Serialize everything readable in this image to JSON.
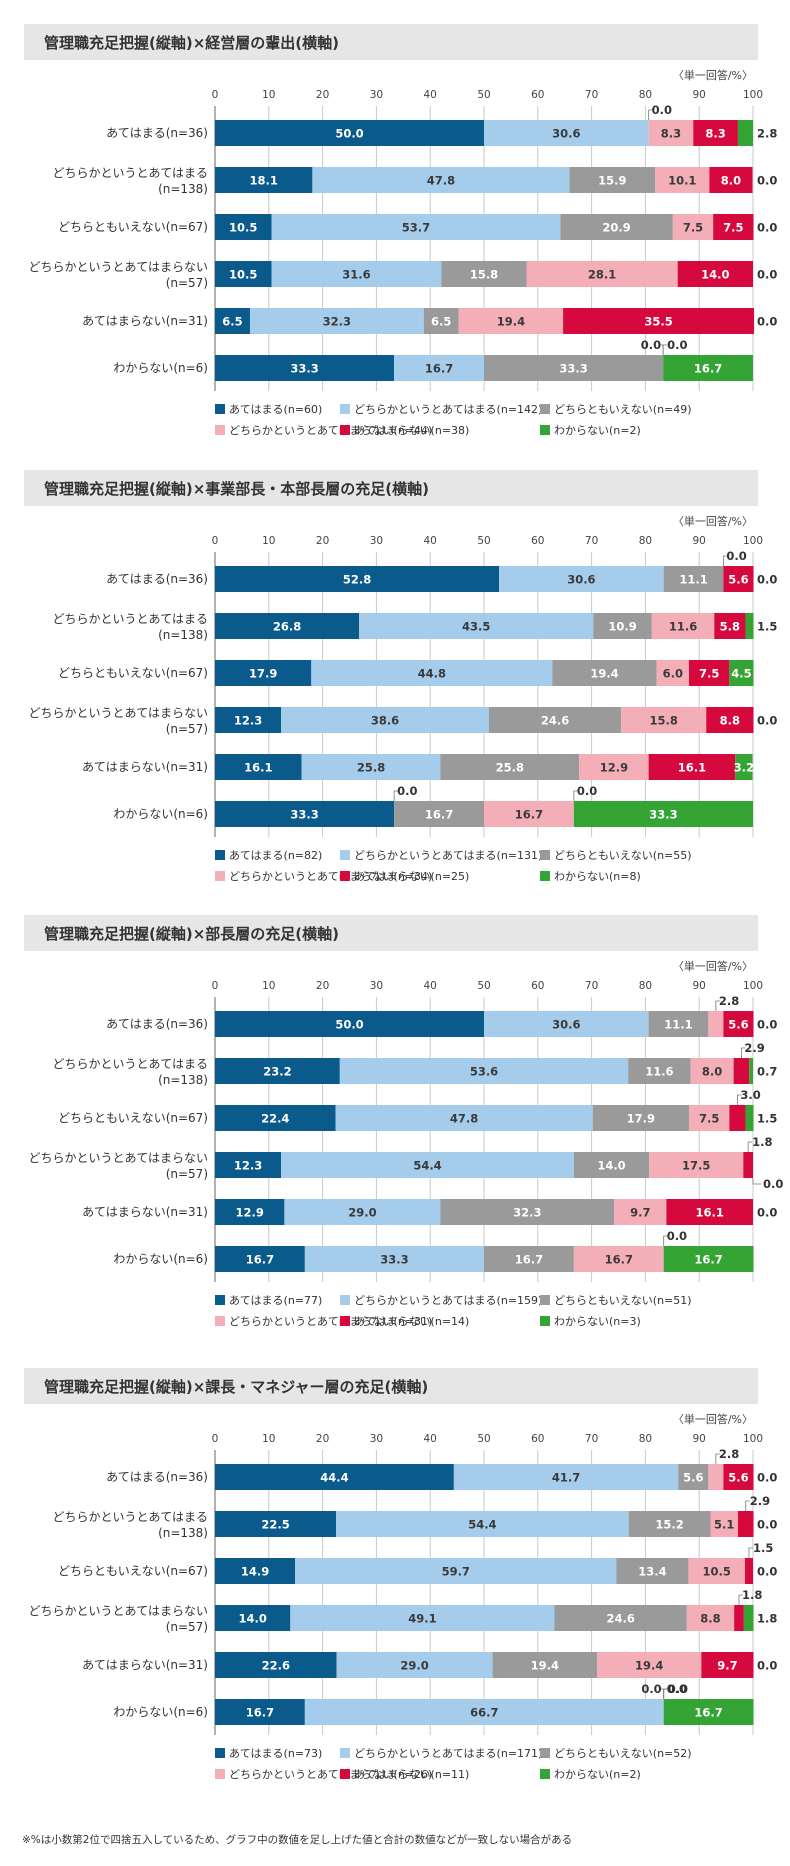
{
  "colors": {
    "s1": "#0a5a8c",
    "s2": "#a5cceb",
    "s3": "#9a9a9a",
    "s4": "#f4aeb8",
    "s5": "#d6093f",
    "s6": "#34a535",
    "header_bg": "#e6e6e6",
    "grid": "#c8c8c8"
  },
  "footnote": "※%は小数第2位で四捨五入しているため、グラフ中の数値を足し上げた値と合計の数値などが一致しない場合がある",
  "chart_data": [
    {
      "type": "bar",
      "stacked": true,
      "orientation": "horizontal",
      "title": "管理職充足把握(縦軸)×経営層の輩出(横軸)",
      "unit_note": "〈単一回答/%〉",
      "xlim": [
        0,
        100
      ],
      "ticks": [
        "0",
        "10",
        "20",
        "30",
        "40",
        "50",
        "60",
        "70",
        "80",
        "90",
        "100"
      ],
      "categories": [
        [
          "あてはまる(n=36)"
        ],
        [
          "どちらかというとあてはまる",
          "(n=138)"
        ],
        [
          "どちらともいえない(n=67)"
        ],
        [
          "どちらかというとあてはまらない",
          "(n=57)"
        ],
        [
          "あてはまらない(n=31)"
        ],
        [
          "わからない(n=6)"
        ]
      ],
      "series_names": [
        "あてはまる",
        "どちらかというとあてはまる",
        "どちらともいえない",
        "どちらかというとあてはまらない",
        "あてはまらない",
        "わからない"
      ],
      "rows": [
        {
          "values": [
            "50.0",
            "30.6",
            "0.0",
            "8.3",
            "8.3",
            "2.8"
          ],
          "inside": [
            true,
            true,
            false,
            true,
            true,
            false
          ],
          "callouts": [
            {
              "s": 2,
              "label": "0.0",
              "pos": "above"
            },
            {
              "s": 5,
              "label": "2.8",
              "pos": "right"
            }
          ]
        },
        {
          "values": [
            "18.1",
            "47.8",
            "15.9",
            "10.1",
            "8.0",
            "0.0"
          ],
          "inside": [
            true,
            true,
            true,
            true,
            true,
            false
          ],
          "callouts": [
            {
              "s": 5,
              "label": "0.0",
              "pos": "right"
            }
          ]
        },
        {
          "values": [
            "10.5",
            "53.7",
            "20.9",
            "7.5",
            "7.5",
            "0.0"
          ],
          "inside": [
            true,
            true,
            true,
            true,
            true,
            false
          ],
          "callouts": [
            {
              "s": 5,
              "label": "0.0",
              "pos": "right"
            }
          ]
        },
        {
          "values": [
            "10.5",
            "31.6",
            "15.8",
            "28.1",
            "14.0",
            "0.0"
          ],
          "inside": [
            true,
            true,
            true,
            true,
            true,
            false
          ],
          "callouts": [
            {
              "s": 5,
              "label": "0.0",
              "pos": "right"
            }
          ]
        },
        {
          "values": [
            "6.5",
            "32.3",
            "6.5",
            "19.4",
            "35.5",
            "0.0"
          ],
          "inside": [
            true,
            true,
            true,
            true,
            true,
            false
          ],
          "callouts": [
            {
              "s": 5,
              "label": "0.0",
              "pos": "right"
            }
          ]
        },
        {
          "values": [
            "33.3",
            "16.7",
            "33.3",
            "0.0",
            "0.0",
            "16.7"
          ],
          "inside": [
            true,
            true,
            true,
            false,
            false,
            true
          ],
          "callouts": [
            {
              "s": 3,
              "label": "0.0",
              "pos": "above-left"
            },
            {
              "s": 4,
              "label": "0.0",
              "pos": "above-right"
            }
          ]
        }
      ],
      "legend": [
        [
          "あてはまる(n=60)",
          "どちらかというとあてはまる(n=142)",
          "どちらともいえない(n=49)"
        ],
        [
          "どちらかというとあてはまらない(n=44)",
          "あてはまらない(n=38)",
          "わからない(n=2)"
        ]
      ]
    },
    {
      "type": "bar",
      "stacked": true,
      "orientation": "horizontal",
      "title": "管理職充足把握(縦軸)×事業部長・本部長層の充足(横軸)",
      "unit_note": "〈単一回答/%〉",
      "xlim": [
        0,
        100
      ],
      "ticks": [
        "0",
        "10",
        "20",
        "30",
        "40",
        "50",
        "60",
        "70",
        "80",
        "90",
        "100"
      ],
      "categories": [
        [
          "あてはまる(n=36)"
        ],
        [
          "どちらかというとあてはまる",
          "(n=138)"
        ],
        [
          "どちらともいえない(n=67)"
        ],
        [
          "どちらかというとあてはまらない",
          "(n=57)"
        ],
        [
          "あてはまらない(n=31)"
        ],
        [
          "わからない(n=6)"
        ]
      ],
      "series_names": [
        "あてはまる",
        "どちらかというとあてはまる",
        "どちらともいえない",
        "どちらかというとあてはまらない",
        "あてはまらない",
        "わからない"
      ],
      "rows": [
        {
          "values": [
            "52.8",
            "30.6",
            "11.1",
            "0.0",
            "5.6",
            "0.0"
          ],
          "inside": [
            true,
            true,
            true,
            false,
            true,
            false
          ],
          "callouts": [
            {
              "s": 3,
              "label": "0.0",
              "pos": "above"
            },
            {
              "s": 5,
              "label": "0.0",
              "pos": "right"
            }
          ]
        },
        {
          "values": [
            "26.8",
            "43.5",
            "10.9",
            "11.6",
            "5.8",
            "1.5"
          ],
          "inside": [
            true,
            true,
            true,
            true,
            true,
            false
          ],
          "callouts": [
            {
              "s": 5,
              "label": "1.5",
              "pos": "right"
            }
          ]
        },
        {
          "values": [
            "17.9",
            "44.8",
            "19.4",
            "6.0",
            "7.5",
            "4.5"
          ],
          "inside": [
            true,
            true,
            true,
            true,
            true,
            true
          ],
          "callouts": []
        },
        {
          "values": [
            "12.3",
            "38.6",
            "24.6",
            "15.8",
            "8.8",
            "0.0"
          ],
          "inside": [
            true,
            true,
            true,
            true,
            true,
            false
          ],
          "callouts": [
            {
              "s": 5,
              "label": "0.0",
              "pos": "right"
            }
          ]
        },
        {
          "values": [
            "16.1",
            "25.8",
            "25.8",
            "12.9",
            "16.1",
            "3.2"
          ],
          "inside": [
            true,
            true,
            true,
            true,
            true,
            true
          ],
          "callouts": []
        },
        {
          "values": [
            "33.3",
            "0.0",
            "16.7",
            "16.7",
            "0.0",
            "33.3"
          ],
          "inside": [
            true,
            false,
            true,
            true,
            false,
            true
          ],
          "callouts": [
            {
              "s": 1,
              "label": "0.0",
              "pos": "above"
            },
            {
              "s": 4,
              "label": "0.0",
              "pos": "above"
            }
          ]
        }
      ],
      "legend": [
        [
          "あてはまる(n=82)",
          "どちらかというとあてはまる(n=131)",
          "どちらともいえない(n=55)"
        ],
        [
          "どちらかというとあてはまらない(n=34)",
          "あてはまらない(n=25)",
          "わからない(n=8)"
        ]
      ]
    },
    {
      "type": "bar",
      "stacked": true,
      "orientation": "horizontal",
      "title": "管理職充足把握(縦軸)×部長層の充足(横軸)",
      "unit_note": "〈単一回答/%〉",
      "xlim": [
        0,
        100
      ],
      "ticks": [
        "0",
        "10",
        "20",
        "30",
        "40",
        "50",
        "60",
        "70",
        "80",
        "90",
        "100"
      ],
      "categories": [
        [
          "あてはまる(n=36)"
        ],
        [
          "どちらかというとあてはまる",
          "(n=138)"
        ],
        [
          "どちらともいえない(n=67)"
        ],
        [
          "どちらかというとあてはまらない",
          "(n=57)"
        ],
        [
          "あてはまらない(n=31)"
        ],
        [
          "わからない(n=6)"
        ]
      ],
      "series_names": [
        "あてはまる",
        "どちらかというとあてはまる",
        "どちらともいえない",
        "どちらかというとあてはまらない",
        "あてはまらない",
        "わからない"
      ],
      "rows": [
        {
          "values": [
            "50.0",
            "30.6",
            "11.1",
            "2.8",
            "5.6",
            "0.0"
          ],
          "inside": [
            true,
            true,
            true,
            false,
            true,
            false
          ],
          "callouts": [
            {
              "s": 3,
              "label": "2.8",
              "pos": "above"
            },
            {
              "s": 5,
              "label": "0.0",
              "pos": "right"
            }
          ]
        },
        {
          "values": [
            "23.2",
            "53.6",
            "11.6",
            "8.0",
            "2.9",
            "0.7"
          ],
          "inside": [
            true,
            true,
            true,
            true,
            false,
            false
          ],
          "callouts": [
            {
              "s": 4,
              "label": "2.9",
              "pos": "above"
            },
            {
              "s": 5,
              "label": "0.7",
              "pos": "right"
            }
          ]
        },
        {
          "values": [
            "22.4",
            "47.8",
            "17.9",
            "7.5",
            "3.0",
            "1.5"
          ],
          "inside": [
            true,
            true,
            true,
            true,
            false,
            false
          ],
          "callouts": [
            {
              "s": 4,
              "label": "3.0",
              "pos": "above"
            },
            {
              "s": 5,
              "label": "1.5",
              "pos": "right"
            }
          ]
        },
        {
          "values": [
            "12.3",
            "54.4",
            "14.0",
            "17.5",
            "1.8",
            "0.0"
          ],
          "inside": [
            true,
            true,
            true,
            true,
            false,
            false
          ],
          "callouts": [
            {
              "s": 4,
              "label": "1.8",
              "pos": "above-right"
            },
            {
              "s": 5,
              "label": "0.0",
              "pos": "below-right"
            }
          ]
        },
        {
          "values": [
            "12.9",
            "29.0",
            "32.3",
            "9.7",
            "16.1",
            "0.0"
          ],
          "inside": [
            true,
            true,
            true,
            true,
            true,
            false
          ],
          "callouts": [
            {
              "s": 5,
              "label": "0.0",
              "pos": "right"
            }
          ]
        },
        {
          "values": [
            "16.7",
            "33.3",
            "16.7",
            "16.7",
            "0.0",
            "16.7"
          ],
          "inside": [
            true,
            true,
            true,
            true,
            false,
            true
          ],
          "callouts": [
            {
              "s": 4,
              "label": "0.0",
              "pos": "above"
            }
          ]
        }
      ],
      "legend": [
        [
          "あてはまる(n=77)",
          "どちらかというとあてはまる(n=159)",
          "どちらともいえない(n=51)"
        ],
        [
          "どちらかというとあてはまらない(n=31)",
          "あてはまらない(n=14)",
          "わからない(n=3)"
        ]
      ]
    },
    {
      "type": "bar",
      "stacked": true,
      "orientation": "horizontal",
      "title": "管理職充足把握(縦軸)×課長・マネジャー層の充足(横軸)",
      "unit_note": "〈単一回答/%〉",
      "xlim": [
        0,
        100
      ],
      "ticks": [
        "0",
        "10",
        "20",
        "30",
        "40",
        "50",
        "60",
        "70",
        "80",
        "90",
        "100"
      ],
      "categories": [
        [
          "あてはまる(n=36)"
        ],
        [
          "どちらかというとあてはまる",
          "(n=138)"
        ],
        [
          "どちらともいえない(n=67)"
        ],
        [
          "どちらかというとあてはまらない",
          "(n=57)"
        ],
        [
          "あてはまらない(n=31)"
        ],
        [
          "わからない(n=6)"
        ]
      ],
      "series_names": [
        "あてはまる",
        "どちらかというとあてはまる",
        "どちらともいえない",
        "どちらかというとあてはまらない",
        "あてはまらない",
        "わからない"
      ],
      "rows": [
        {
          "values": [
            "44.4",
            "41.7",
            "5.6",
            "2.8",
            "5.6",
            "0.0"
          ],
          "inside": [
            true,
            true,
            true,
            false,
            true,
            false
          ],
          "callouts": [
            {
              "s": 3,
              "label": "2.8",
              "pos": "above"
            },
            {
              "s": 5,
              "label": "0.0",
              "pos": "right"
            }
          ]
        },
        {
          "values": [
            "22.5",
            "54.4",
            "15.2",
            "5.1",
            "2.9",
            "0.0"
          ],
          "inside": [
            true,
            true,
            true,
            true,
            false,
            false
          ],
          "callouts": [
            {
              "s": 4,
              "label": "2.9",
              "pos": "above-right"
            },
            {
              "s": 5,
              "label": "0.0",
              "pos": "right"
            }
          ]
        },
        {
          "values": [
            "14.9",
            "59.7",
            "13.4",
            "10.5",
            "1.5",
            "0.0"
          ],
          "inside": [
            true,
            true,
            true,
            true,
            false,
            false
          ],
          "callouts": [
            {
              "s": 4,
              "label": "1.5",
              "pos": "above-right"
            },
            {
              "s": 5,
              "label": "0.0",
              "pos": "right"
            }
          ]
        },
        {
          "values": [
            "14.0",
            "49.1",
            "24.6",
            "8.8",
            "1.8",
            "1.8"
          ],
          "inside": [
            true,
            true,
            true,
            true,
            false,
            false
          ],
          "callouts": [
            {
              "s": 4,
              "label": "1.8",
              "pos": "above"
            },
            {
              "s": 5,
              "label": "1.8",
              "pos": "right"
            }
          ]
        },
        {
          "values": [
            "22.6",
            "29.0",
            "19.4",
            "19.4",
            "9.7",
            "0.0"
          ],
          "inside": [
            true,
            true,
            true,
            true,
            true,
            false
          ],
          "callouts": [
            {
              "s": 5,
              "label": "0.0",
              "pos": "right"
            }
          ]
        },
        {
          "values": [
            "16.7",
            "66.7",
            "0.0",
            "0.0",
            "0.0",
            "16.7"
          ],
          "inside": [
            true,
            true,
            false,
            false,
            false,
            true
          ],
          "callouts": [
            {
              "s": 2,
              "label": "0.0",
              "pos": "above-left"
            },
            {
              "s": 3,
              "label": "0.0",
              "pos": "above"
            },
            {
              "s": 4,
              "label": "0.0",
              "pos": "above-right"
            }
          ]
        }
      ],
      "legend": [
        [
          "あてはまる(n=73)",
          "どちらかというとあてはまる(n=171)",
          "どちらともいえない(n=52)"
        ],
        [
          "どちらかというとあてはまらない(n=26)",
          "あてはまらない(n=11)",
          "わからない(n=2)"
        ]
      ]
    }
  ]
}
